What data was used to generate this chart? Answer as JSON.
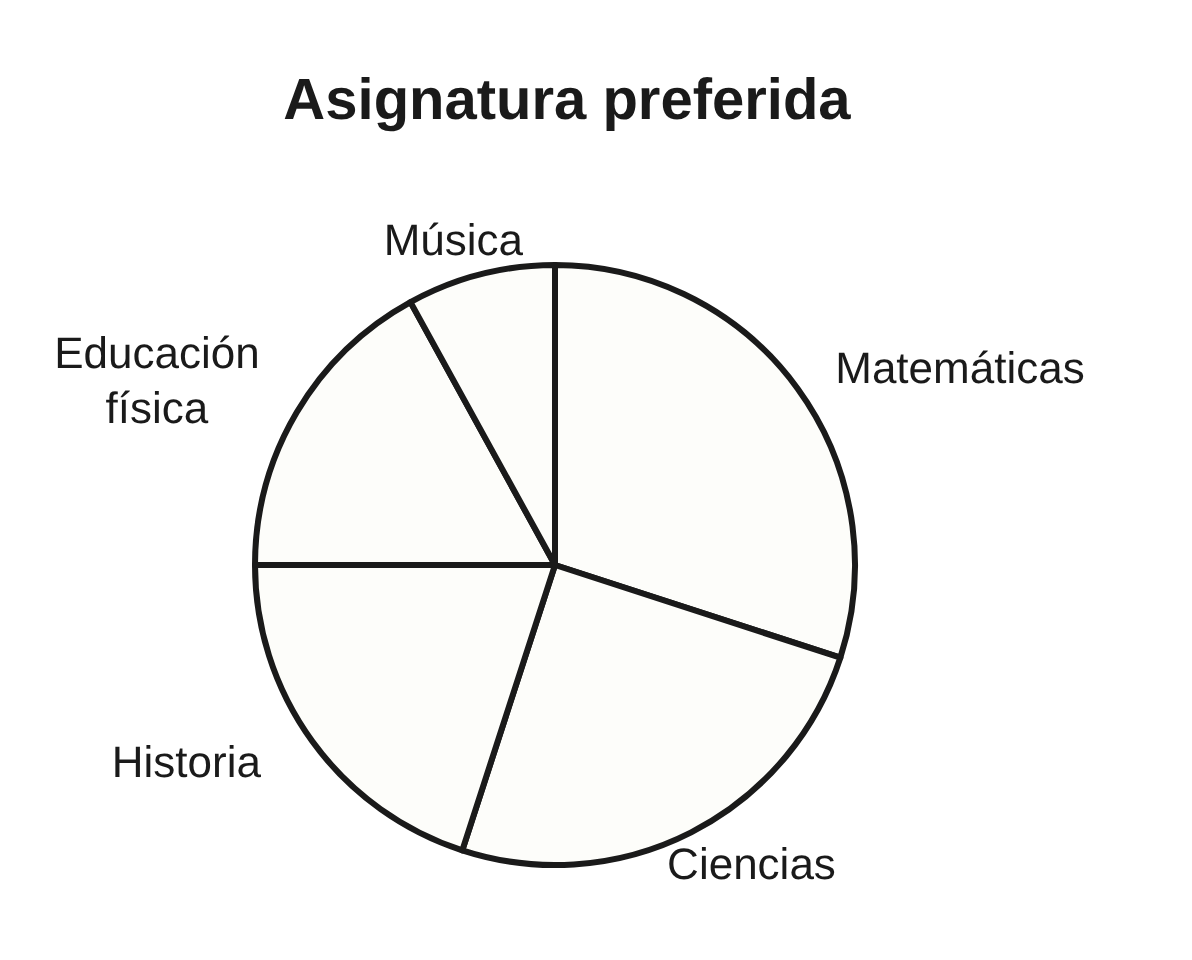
{
  "chart_data": {
    "type": "pie",
    "title": "Asignatura preferida",
    "categories": [
      "Matemáticas",
      "Ciencias",
      "Historia",
      "Educación física",
      "Música"
    ],
    "values": [
      30,
      25,
      20,
      17,
      8
    ],
    "colors": [
      "#fdfdfa",
      "#fdfdfa",
      "#fdfdfa",
      "#fdfdfa",
      "#fdfdfa"
    ]
  }
}
